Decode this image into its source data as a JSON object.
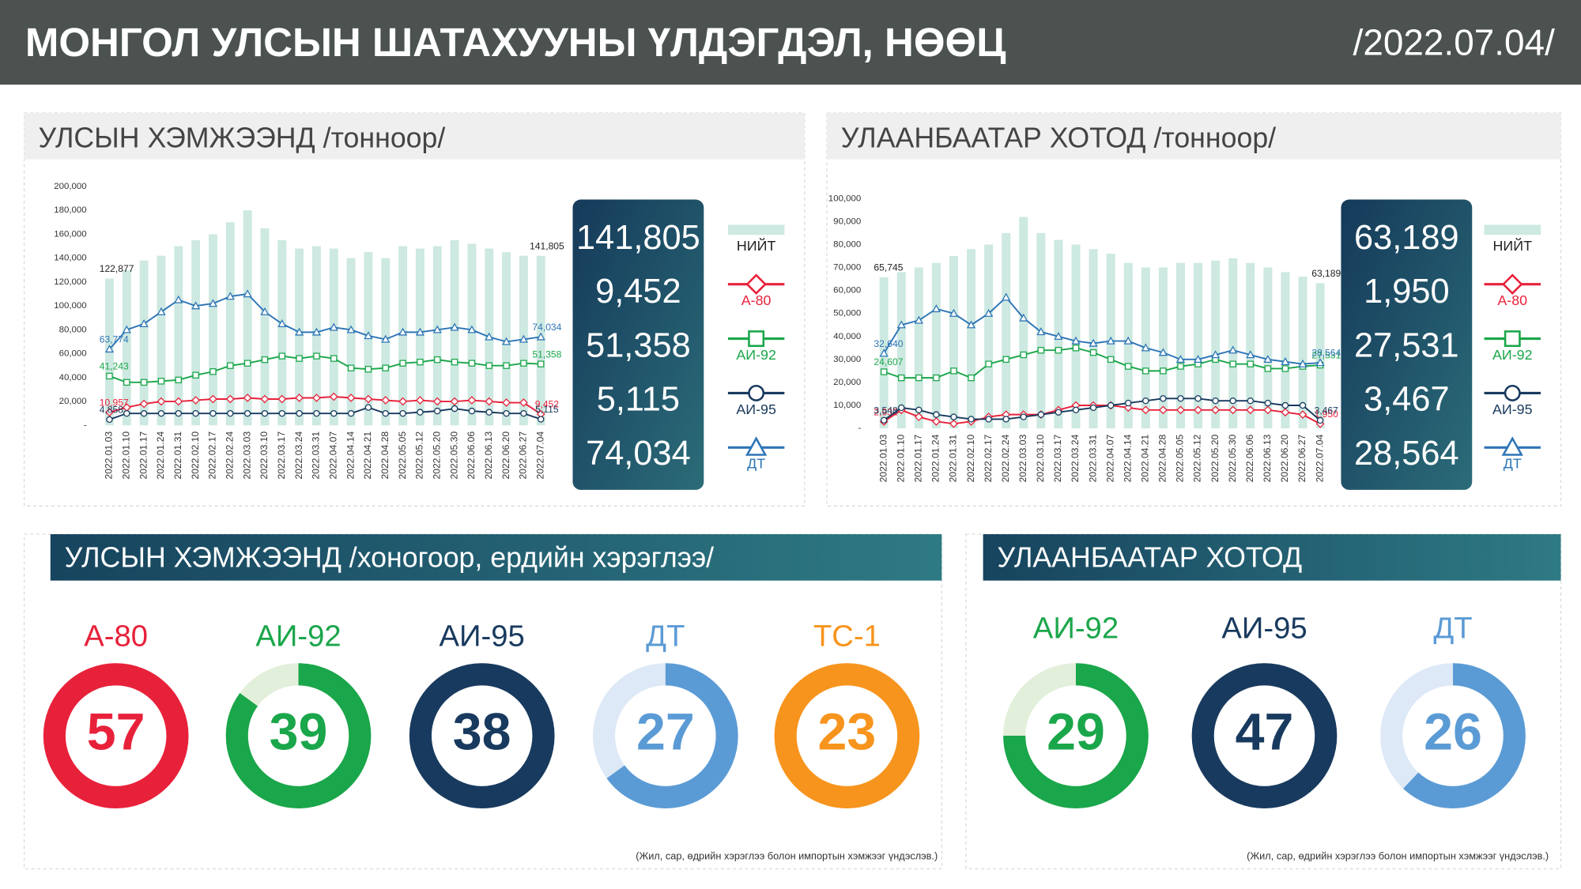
{
  "title": "МОНГОЛ УЛСЫН ШАТАХУУНЫ ҮЛДЭГДЭЛ, НӨӨЦ",
  "date": "/2022.07.04/",
  "chart_data": [
    {
      "type": "combo",
      "title": "УЛСЫН ХЭМЖЭЭНД /тонноор/",
      "categories": [
        "2022.01.03",
        "2022.01.10",
        "2022.01.17",
        "2022.01.24",
        "2022.01.31",
        "2022.02.10",
        "2022.02.17",
        "2022.02.24",
        "2022.03.03",
        "2022.03.10",
        "2022.03.17",
        "2022.03.24",
        "2022.03.31",
        "2022.04.07",
        "2022.04.14",
        "2022.04.21",
        "2022.04.28",
        "2022.05.05",
        "2022.05.12",
        "2022.05.20",
        "2022.05.30",
        "2022.06.06",
        "2022.06.13",
        "2022.06.20",
        "2022.06.27",
        "2022.07.04"
      ],
      "ylim": [
        0,
        200000
      ],
      "yticks": [
        {
          "value": 0,
          "label": "-"
        },
        {
          "value": 20000,
          "label": "20,000"
        },
        {
          "value": 40000,
          "label": "40,000"
        },
        {
          "value": 60000,
          "label": "60,000"
        },
        {
          "value": 80000,
          "label": "80,000"
        },
        {
          "value": 100000,
          "label": "100,000"
        },
        {
          "value": 120000,
          "label": "120,000"
        },
        {
          "value": 140000,
          "label": "140,000"
        },
        {
          "value": 160000,
          "label": "160,000"
        },
        {
          "value": 180000,
          "label": "180,000"
        },
        {
          "value": 200000,
          "label": "200,000"
        }
      ],
      "grid": false,
      "series": [
        {
          "name": "НИЙТ",
          "type": "bar",
          "color": "#cde9e1",
          "label_color": "#222222",
          "values": [
            122877,
            130000,
            138000,
            142000,
            150000,
            155000,
            160000,
            170000,
            180000,
            165000,
            155000,
            148000,
            150000,
            148000,
            140000,
            145000,
            140000,
            150000,
            148000,
            150000,
            155000,
            152000,
            148000,
            145000,
            142000,
            141805
          ],
          "value_labels": [
            "122,877",
            null,
            null,
            null,
            null,
            null,
            null,
            null,
            null,
            null,
            null,
            null,
            null,
            null,
            null,
            null,
            null,
            null,
            null,
            null,
            null,
            null,
            null,
            null,
            null,
            "141,805"
          ]
        },
        {
          "name": "А-80",
          "type": "line",
          "marker": "diamond",
          "color": "#e8213a",
          "values": [
            10957,
            15000,
            18000,
            20000,
            20000,
            21000,
            22000,
            22000,
            23000,
            22000,
            22000,
            23000,
            23000,
            24000,
            23000,
            22000,
            21000,
            20000,
            21000,
            20000,
            20000,
            21000,
            20000,
            19000,
            19000,
            9452
          ],
          "value_labels": [
            "10,957",
            null,
            null,
            null,
            null,
            null,
            null,
            null,
            null,
            null,
            null,
            null,
            null,
            null,
            null,
            null,
            null,
            null,
            null,
            null,
            null,
            null,
            null,
            null,
            null,
            "9,452"
          ]
        },
        {
          "name": "АИ-92",
          "type": "line",
          "marker": "square",
          "color": "#1aa64a",
          "values": [
            41243,
            36000,
            36000,
            37000,
            38000,
            42000,
            45000,
            50000,
            52000,
            55000,
            58000,
            56000,
            58000,
            56000,
            48000,
            47000,
            48000,
            52000,
            53000,
            55000,
            53000,
            52000,
            50000,
            50000,
            52000,
            51358
          ],
          "value_labels": [
            "41,243",
            null,
            null,
            null,
            null,
            null,
            null,
            null,
            null,
            null,
            null,
            null,
            null,
            null,
            null,
            null,
            null,
            null,
            null,
            null,
            null,
            null,
            null,
            null,
            null,
            "51,358"
          ]
        },
        {
          "name": "АИ-95",
          "type": "line",
          "marker": "circle",
          "color": "#183a5e",
          "values": [
            4858,
            10000,
            10000,
            10000,
            10000,
            10000,
            10000,
            10000,
            10000,
            10000,
            10000,
            10000,
            10000,
            10000,
            10000,
            15000,
            10000,
            10000,
            11000,
            12000,
            14000,
            12000,
            11000,
            10000,
            10000,
            5115
          ],
          "value_labels": [
            "4,858",
            null,
            null,
            null,
            null,
            null,
            null,
            null,
            null,
            null,
            null,
            null,
            null,
            null,
            null,
            null,
            null,
            null,
            null,
            null,
            null,
            null,
            null,
            null,
            null,
            "5,115"
          ]
        },
        {
          "name": "ДТ",
          "type": "line",
          "marker": "triangle",
          "color": "#2e75b6",
          "values": [
            63774,
            80000,
            85000,
            95000,
            105000,
            100000,
            102000,
            108000,
            110000,
            95000,
            85000,
            78000,
            78000,
            82000,
            80000,
            75000,
            72000,
            78000,
            78000,
            80000,
            82000,
            80000,
            74000,
            70000,
            72000,
            74034
          ],
          "value_labels": [
            "63,774",
            null,
            null,
            null,
            null,
            null,
            null,
            null,
            null,
            null,
            null,
            null,
            null,
            null,
            null,
            null,
            null,
            null,
            null,
            null,
            null,
            null,
            null,
            null,
            null,
            "74,034"
          ]
        }
      ]
    },
    {
      "type": "combo",
      "title": "УЛААНБААТАР ХОТОД /тонноор/",
      "categories": [
        "2022.01.03",
        "2022.01.10",
        "2022.01.17",
        "2022.01.24",
        "2022.01.31",
        "2022.02.10",
        "2022.02.17",
        "2022.02.24",
        "2022.03.03",
        "2022.03.10",
        "2022.03.17",
        "2022.03.24",
        "2022.03.31",
        "2022.04.07",
        "2022.04.14",
        "2022.04.21",
        "2022.04.28",
        "2022.05.05",
        "2022.05.12",
        "2022.05.20",
        "2022.05.30",
        "2022.06.06",
        "2022.06.13",
        "2022.06.20",
        "2022.06.27",
        "2022.07.04"
      ],
      "ylim": [
        0,
        100000
      ],
      "yticks": [
        {
          "value": 0,
          "label": "-"
        },
        {
          "value": 10000,
          "label": "10,000"
        },
        {
          "value": 20000,
          "label": "20,000"
        },
        {
          "value": 30000,
          "label": "30,000"
        },
        {
          "value": 40000,
          "label": "40,000"
        },
        {
          "value": 50000,
          "label": "50,000"
        },
        {
          "value": 60000,
          "label": "60,000"
        },
        {
          "value": 70000,
          "label": "70,000"
        },
        {
          "value": 80000,
          "label": "80,000"
        },
        {
          "value": 90000,
          "label": "90,000"
        },
        {
          "value": 100000,
          "label": "100,000"
        }
      ],
      "grid": false,
      "series": [
        {
          "name": "НИЙТ",
          "type": "bar",
          "color": "#cde9e1",
          "label_color": "#222222",
          "values": [
            65745,
            68000,
            70000,
            72000,
            75000,
            78000,
            80000,
            85000,
            92000,
            85000,
            82000,
            80000,
            78000,
            76000,
            72000,
            70000,
            70000,
            72000,
            72000,
            73000,
            74000,
            72000,
            70000,
            68000,
            66000,
            63189
          ],
          "value_labels": [
            "65,745",
            null,
            null,
            null,
            null,
            null,
            null,
            null,
            null,
            null,
            null,
            null,
            null,
            null,
            null,
            null,
            null,
            null,
            null,
            null,
            null,
            null,
            null,
            null,
            null,
            "63,189"
          ]
        },
        {
          "name": "А-80",
          "type": "line",
          "marker": "diamond",
          "color": "#e8213a",
          "values": [
            2932,
            8000,
            5000,
            3000,
            2000,
            3000,
            5000,
            6000,
            6000,
            6000,
            8000,
            10000,
            10000,
            10000,
            9000,
            8000,
            8000,
            8000,
            8000,
            8000,
            8000,
            8000,
            8000,
            7000,
            6000,
            1950
          ],
          "value_labels": [
            "2,932",
            null,
            null,
            null,
            null,
            null,
            null,
            null,
            null,
            null,
            null,
            null,
            null,
            null,
            null,
            null,
            null,
            null,
            null,
            null,
            null,
            null,
            null,
            null,
            null,
            "1,950"
          ]
        },
        {
          "name": "АИ-92",
          "type": "line",
          "marker": "square",
          "color": "#1aa64a",
          "values": [
            24607,
            22000,
            22000,
            22000,
            25000,
            22000,
            28000,
            30000,
            32000,
            34000,
            34000,
            35000,
            33000,
            30000,
            27000,
            25000,
            25000,
            27000,
            28000,
            30000,
            28000,
            28000,
            26000,
            26000,
            27000,
            27531
          ],
          "value_labels": [
            "24,607",
            null,
            null,
            null,
            null,
            null,
            null,
            null,
            null,
            null,
            null,
            null,
            null,
            null,
            null,
            null,
            null,
            null,
            null,
            null,
            null,
            null,
            null,
            null,
            null,
            "27,531"
          ]
        },
        {
          "name": "АИ-95",
          "type": "line",
          "marker": "circle",
          "color": "#183a5e",
          "values": [
            3548,
            9000,
            8000,
            6000,
            5000,
            4000,
            4000,
            4000,
            5000,
            6000,
            7000,
            8000,
            9000,
            10000,
            11000,
            12000,
            13000,
            13000,
            13000,
            12000,
            12000,
            12000,
            11000,
            10000,
            10000,
            3467
          ],
          "value_labels": [
            "3,548",
            null,
            null,
            null,
            null,
            null,
            null,
            null,
            null,
            null,
            null,
            null,
            null,
            null,
            null,
            null,
            null,
            null,
            null,
            null,
            null,
            null,
            null,
            null,
            null,
            "3,467"
          ]
        },
        {
          "name": "ДТ",
          "type": "line",
          "marker": "triangle",
          "color": "#2e75b6",
          "values": [
            32640,
            45000,
            47000,
            52000,
            50000,
            45000,
            50000,
            57000,
            48000,
            42000,
            40000,
            38000,
            37000,
            38000,
            38000,
            35000,
            33000,
            30000,
            30000,
            32000,
            34000,
            32000,
            30000,
            29000,
            28000,
            28564
          ],
          "value_labels": [
            "32,640",
            null,
            null,
            null,
            null,
            null,
            null,
            null,
            null,
            null,
            null,
            null,
            null,
            null,
            null,
            null,
            null,
            null,
            null,
            null,
            null,
            null,
            null,
            null,
            null,
            "28,564"
          ]
        }
      ]
    },
    {
      "type": "donut",
      "title": "УЛСЫН ХЭМЖЭЭНД /хоногоор, ердийн хэрэглээ/",
      "note": "(Жил, сар, өдрийн хэрэглээ болон импортын хэмжээг үндэслэв.)",
      "series": [
        {
          "name": "А-80",
          "color": "#e8213a",
          "track": "#f9d3d8",
          "value": 57,
          "fill": 100
        },
        {
          "name": "АИ-92",
          "color": "#1aa64a",
          "track": "#e2efda",
          "value": 39,
          "fill": 85
        },
        {
          "name": "АИ-95",
          "color": "#183a5e",
          "track": "#d0dae6",
          "value": 38,
          "fill": 100
        },
        {
          "name": "ДТ",
          "color": "#5b9bd5",
          "track": "#dde9f6",
          "value": 27,
          "fill": 65
        },
        {
          "name": "ТС-1",
          "color": "#f7941d",
          "track": "#fde4c6",
          "value": 23,
          "fill": 100
        }
      ]
    },
    {
      "type": "donut",
      "title": "УЛААНБААТАР ХОТОД",
      "note": "(Жил, сар, өдрийн хэрэглээ болон импортын хэмжээг үндэслэв.)",
      "series": [
        {
          "name": "АИ-92",
          "color": "#1aa64a",
          "track": "#e2efda",
          "value": 29,
          "fill": 75
        },
        {
          "name": "АИ-95",
          "color": "#183a5e",
          "track": "#d0dae6",
          "value": 47,
          "fill": 100
        },
        {
          "name": "ДТ",
          "color": "#5b9bd5",
          "track": "#dde9f6",
          "value": 26,
          "fill": 62
        }
      ]
    }
  ]
}
